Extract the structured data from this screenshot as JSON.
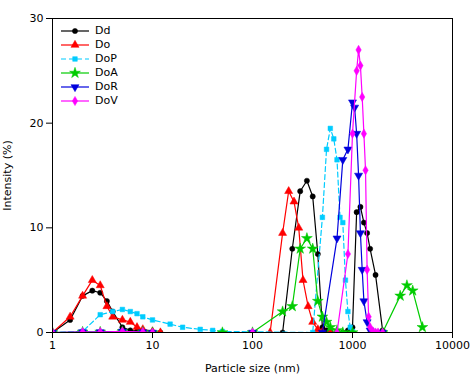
{
  "chart_data": {
    "type": "line",
    "xlabel": "Particle size (nm)",
    "ylabel": "Intensity (%)",
    "log": "x",
    "xlim": [
      1,
      10000
    ],
    "xticks": [
      1,
      10,
      100,
      1000,
      10000
    ],
    "ylim": [
      0,
      30
    ],
    "yticks": [
      0,
      10,
      20,
      30
    ],
    "grid": false,
    "legend": "upper left",
    "series": [
      {
        "name": "Dd",
        "color": "#000000",
        "marker": "circle",
        "line_style": "solid",
        "x": [
          1.0,
          1.5,
          2.0,
          2.5,
          3.0,
          3.5,
          4.0,
          5.0,
          6.0,
          7.0,
          8.0,
          10.0,
          12.0,
          200,
          250,
          300,
          350,
          400,
          450,
          500,
          550,
          600,
          700,
          800,
          900,
          1000,
          1100,
          1200,
          1300,
          1400,
          1500,
          1700,
          2000
        ],
        "values": [
          0.0,
          1.2,
          3.5,
          4.0,
          3.8,
          3.0,
          2.0,
          0.5,
          0.2,
          0.1,
          0.05,
          0.02,
          0.0,
          0.0,
          8.0,
          13.5,
          14.5,
          13.0,
          7.5,
          0.5,
          0.2,
          0.05,
          0.0,
          0.0,
          0.2,
          0.5,
          11.5,
          12.0,
          10.5,
          9.5,
          8.0,
          5.5,
          0.2
        ]
      },
      {
        "name": "Do",
        "color": "#ff0000",
        "marker": "triangle-up",
        "line_style": "solid",
        "x": [
          1.0,
          1.5,
          2.0,
          2.5,
          3.0,
          3.5,
          4.0,
          5.0,
          6.0,
          7.0,
          8.0,
          10.0,
          12.0,
          150,
          200,
          230,
          260,
          290,
          320,
          360,
          400,
          450,
          500,
          600
        ],
        "values": [
          0.0,
          1.5,
          3.5,
          5.0,
          4.5,
          2.5,
          1.5,
          1.2,
          1.0,
          0.5,
          0.3,
          0.1,
          0.0,
          0.0,
          9.5,
          13.5,
          12.5,
          10.0,
          5.0,
          2.5,
          1.0,
          0.3,
          0.05,
          0.0
        ]
      },
      {
        "name": "DoP",
        "color": "#00ccff",
        "marker": "square",
        "line_style": "dashed",
        "x": [
          1.0,
          2.0,
          3.0,
          4.0,
          5.0,
          6.0,
          7.0,
          8.0,
          10.0,
          15.0,
          20.0,
          30.0,
          40.0,
          50.0,
          400,
          500,
          550,
          600,
          650,
          700,
          750,
          800,
          850,
          900,
          950,
          1000
        ],
        "values": [
          0.0,
          0.1,
          1.7,
          2.0,
          2.2,
          2.0,
          1.8,
          1.5,
          1.2,
          0.8,
          0.5,
          0.3,
          0.2,
          0.1,
          0.0,
          11.0,
          17.5,
          19.5,
          18.5,
          16.5,
          11.0,
          10.5,
          5.0,
          2.0,
          0.5,
          0.1
        ]
      },
      {
        "name": "DoA",
        "color": "#00cc00",
        "marker": "star",
        "line_style": "solid",
        "x": [
          1.0,
          2.0,
          3.0,
          5.0,
          8.0,
          10.0,
          50,
          100,
          200,
          250,
          300,
          350,
          400,
          450,
          500,
          550,
          600,
          700,
          800,
          1000,
          2000,
          3000,
          3500,
          4000,
          5000
        ],
        "values": [
          0.0,
          0.05,
          0.05,
          0.1,
          0.05,
          0.0,
          0.0,
          0.0,
          2.0,
          2.5,
          8.0,
          9.0,
          8.0,
          3.0,
          1.5,
          1.0,
          0.5,
          0.2,
          0.0,
          0.0,
          0.0,
          3.5,
          4.5,
          4.0,
          0.5
        ]
      },
      {
        "name": "DoR",
        "color": "#0000dd",
        "marker": "triangle-down",
        "line_style": "solid",
        "x": [
          1.0,
          2.0,
          3.0,
          5.0,
          8.0,
          10.0,
          100,
          500,
          700,
          800,
          900,
          1000,
          1050,
          1100,
          1150,
          1200,
          1250,
          1300,
          1400,
          1500,
          1700,
          2000
        ],
        "values": [
          0.0,
          0.05,
          0.05,
          0.1,
          0.05,
          0.0,
          0.0,
          0.0,
          9.0,
          16.5,
          17.5,
          22.0,
          21.5,
          19.0,
          15.0,
          9.5,
          6.0,
          3.0,
          1.0,
          0.2,
          0.0,
          0.0
        ]
      },
      {
        "name": "DoV",
        "color": "#ff00ff",
        "marker": "diamond",
        "line_style": "solid",
        "x": [
          1.0,
          2.0,
          3.0,
          5.0,
          8.0,
          10.0,
          100,
          700,
          900,
          1000,
          1100,
          1150,
          1200,
          1250,
          1300,
          1350,
          1400,
          1450,
          1500,
          1600,
          1700,
          1800,
          2000
        ],
        "values": [
          0.0,
          0.05,
          0.05,
          0.1,
          0.05,
          0.0,
          0.0,
          0.0,
          7.5,
          19.0,
          25.0,
          27.0,
          25.5,
          22.5,
          19.0,
          15.5,
          6.0,
          1.5,
          0.5,
          0.1,
          0.0,
          0.0,
          0.0
        ]
      }
    ]
  }
}
